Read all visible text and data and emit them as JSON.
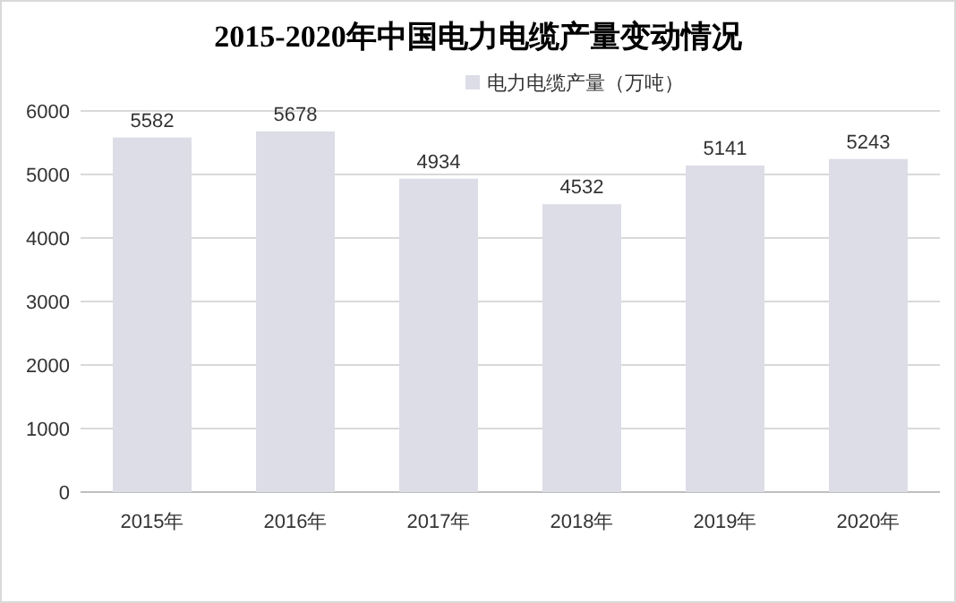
{
  "chart_data": {
    "type": "bar",
    "title": "2015-2020年中国电力电缆产量变动情况",
    "categories": [
      "2015年",
      "2016年",
      "2017年",
      "2018年",
      "2019年",
      "2020年"
    ],
    "series": [
      {
        "name": "电力电缆产量（万吨）",
        "color": "#dcdde6",
        "values": [
          5582,
          5678,
          4934,
          4532,
          5141,
          5243
        ]
      }
    ],
    "ylim": [
      0,
      6000
    ],
    "yticks": [
      0,
      1000,
      2000,
      3000,
      4000,
      5000,
      6000
    ],
    "grid": "y",
    "legend": "top",
    "data_labels": true
  }
}
